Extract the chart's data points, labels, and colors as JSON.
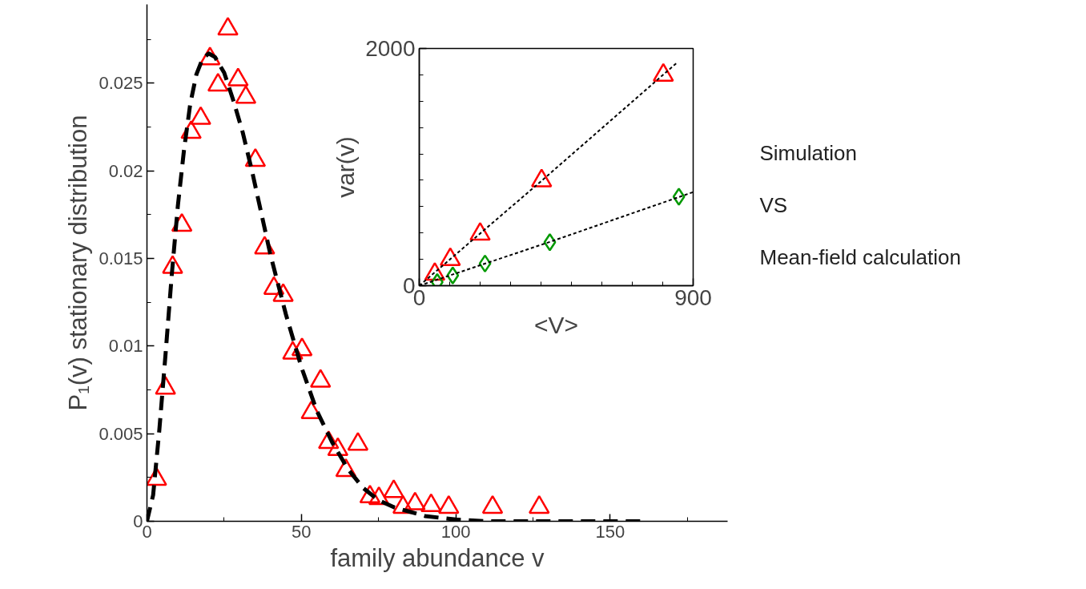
{
  "chart_data": [
    {
      "type": "scatter",
      "xlabel": "family abundance v",
      "ylabel": "P₁(v) stationary distribution",
      "xlim": [
        0,
        188
      ],
      "ylim": [
        0,
        0.0295
      ],
      "xticks": [
        0,
        {
          "value": 25,
          "label": null
        },
        50,
        {
          "value": 75,
          "label": null
        },
        100,
        {
          "value": 125,
          "label": null
        },
        150,
        {
          "value": 175,
          "label": null
        }
      ],
      "yticks": [
        0,
        {
          "value": 0.0025,
          "label": null
        },
        0.005,
        {
          "value": 0.0075,
          "label": null
        },
        0.01,
        {
          "value": 0.0125,
          "label": null
        },
        0.015,
        {
          "value": 0.0175,
          "label": null
        },
        0.02,
        {
          "value": 0.0225,
          "label": null
        },
        0.025,
        {
          "value": 0.0275,
          "label": null
        }
      ],
      "grid": false,
      "series": [
        {
          "marker": "triangle",
          "color": "#ff0000",
          "x": [
            3.1,
            6.0,
            8.3,
            11.3,
            14.3,
            17.4,
            20.4,
            23,
            26.2,
            29.5,
            32,
            35.1,
            38.1,
            41.1,
            44.1,
            47.2,
            50.2,
            53.2,
            56.2,
            58.8,
            61.8,
            64.4,
            68.3,
            72.2,
            75.1,
            79.9,
            82.9,
            86.8,
            92,
            97.7,
            111.9,
            127
          ],
          "values": [
            0.0024,
            0.0076,
            0.0145,
            0.0169,
            0.0222,
            0.023,
            0.0264,
            0.0249,
            0.0281,
            0.0252,
            0.0242,
            0.0206,
            0.0156,
            0.0133,
            0.0129,
            0.0096,
            0.0098,
            0.0062,
            0.008,
            0.0045,
            0.0041,
            0.0029,
            0.0044,
            0.0014,
            0.0013,
            0.0017,
            0.0008,
            0.001,
            0.0009,
            0.0008,
            0.0008,
            0.0008
          ]
        },
        {
          "type": "line",
          "line_style": "dashed",
          "color": "#000000",
          "x": [
            0,
            2,
            4,
            6,
            8,
            10,
            12,
            14,
            16,
            18,
            20,
            22,
            25,
            28,
            31,
            34,
            37,
            40,
            45,
            50,
            55,
            60,
            65,
            70,
            75,
            80,
            90,
            100,
            110,
            160
          ],
          "values": [
            0,
            0.0015,
            0.0052,
            0.0095,
            0.014,
            0.018,
            0.0212,
            0.0238,
            0.0255,
            0.0264,
            0.0267,
            0.0265,
            0.0256,
            0.024,
            0.0222,
            0.02,
            0.0176,
            0.0152,
            0.0118,
            0.0088,
            0.0063,
            0.0045,
            0.003,
            0.0019,
            0.0012,
            0.0008,
            0.0003,
            0.0001,
            0,
            0
          ]
        }
      ]
    },
    {
      "type": "scatter",
      "xlabel": "<V>",
      "ylabel": "var(v)",
      "xlim": [
        0,
        900
      ],
      "ylim": [
        0,
        2000
      ],
      "xticks": [
        0,
        {
          "value": 100,
          "label": null
        },
        {
          "value": 200,
          "label": null
        },
        {
          "value": 300,
          "label": null
        },
        {
          "value": 400,
          "label": null
        },
        {
          "value": 500,
          "label": null
        },
        {
          "value": 600,
          "label": null
        },
        {
          "value": 700,
          "label": null
        },
        {
          "value": 800,
          "label": null
        },
        900
      ],
      "yticks": [
        0,
        {
          "value": 222,
          "label": null
        },
        {
          "value": 444,
          "label": null
        },
        {
          "value": 667,
          "label": null
        },
        {
          "value": 889,
          "label": null
        },
        {
          "value": 1111,
          "label": null
        },
        {
          "value": 1333,
          "label": null
        },
        {
          "value": 1556,
          "label": null
        },
        {
          "value": 1778,
          "label": null
        },
        2000
      ],
      "grid": false,
      "series": [
        {
          "marker": "triangle",
          "color": "#ff0000",
          "x": [
            51,
            102,
            200,
            402,
            802
          ],
          "values": [
            97,
            221,
            435,
            885,
            1775
          ]
        },
        {
          "marker": "diamond",
          "color": "#009900",
          "x": [
            59,
            110,
            216,
            429,
            853
          ],
          "values": [
            30,
            86,
            187,
            367,
            750
          ]
        },
        {
          "type": "line",
          "line_style": "dashed",
          "color": "#000000",
          "x": [
            0,
            400,
            845
          ],
          "values": [
            0,
            880,
            1876
          ]
        },
        {
          "type": "line",
          "line_style": "dashed",
          "color": "#000000",
          "x": [
            0,
            430,
            900
          ],
          "values": [
            0,
            370,
            789
          ]
        }
      ]
    },
    {
      "type": "other",
      "annotations": [
        "Simulation",
        "VS",
        "Mean-field calculation"
      ]
    }
  ]
}
